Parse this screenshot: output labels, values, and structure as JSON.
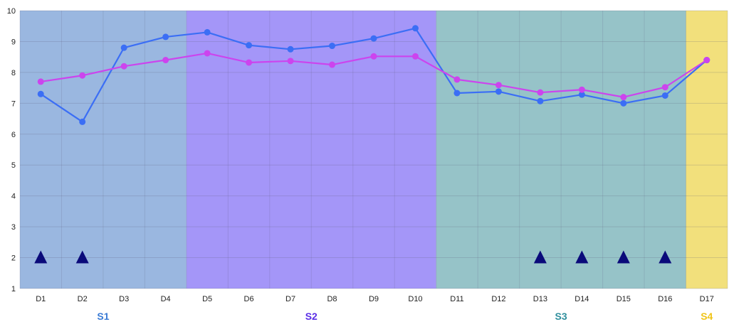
{
  "chart_data": {
    "type": "line",
    "title": "",
    "xlabel": "",
    "ylabel": "",
    "ylim": [
      1,
      10
    ],
    "yticks": [
      1,
      2,
      3,
      4,
      5,
      6,
      7,
      8,
      9,
      10
    ],
    "grid": true,
    "categories": [
      "D1",
      "D2",
      "D3",
      "D4",
      "D5",
      "D6",
      "D7",
      "D8",
      "D9",
      "D10",
      "D11",
      "D12",
      "D13",
      "D14",
      "D15",
      "D16",
      "D17"
    ],
    "series": [
      {
        "color": "#3b6ef5",
        "values": [
          7.3,
          6.4,
          8.8,
          9.15,
          9.3,
          8.88,
          8.75,
          8.86,
          9.1,
          9.43,
          7.33,
          7.38,
          7.07,
          7.28,
          7.0,
          7.25,
          8.4
        ]
      },
      {
        "color": "#cc44ee",
        "values": [
          7.7,
          7.9,
          8.2,
          8.4,
          8.62,
          8.32,
          8.37,
          8.25,
          8.52,
          8.52,
          7.77,
          7.59,
          7.35,
          7.44,
          7.2,
          7.52,
          8.4
        ]
      }
    ],
    "sections": [
      {
        "label": "S1",
        "start": 0,
        "end": 3,
        "bg": "#9ab7e0",
        "label_color": "#3a7bd5"
      },
      {
        "label": "S2",
        "start": 4,
        "end": 9,
        "bg": "#a496f8",
        "label_color": "#5a2ee6"
      },
      {
        "label": "S3",
        "start": 10,
        "end": 15,
        "bg": "#96c3c8",
        "label_color": "#2f8f9d"
      },
      {
        "label": "S4",
        "start": 16,
        "end": 16,
        "bg": "#f2e07c",
        "label_color": "#f0c419"
      }
    ],
    "markers": {
      "shape": "triangle",
      "color": "#0a0a7a",
      "y": 2,
      "categories": [
        "D1",
        "D2",
        "D13",
        "D14",
        "D15",
        "D16"
      ]
    }
  }
}
